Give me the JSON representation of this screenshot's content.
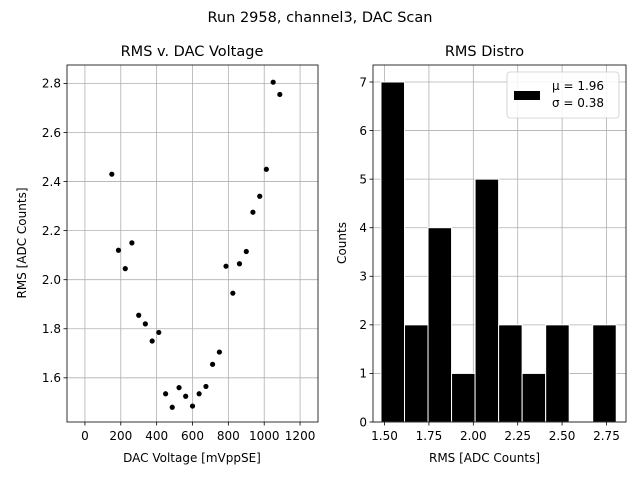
{
  "suptitle": "Run 2958, channel3, DAC Scan",
  "chart_data": [
    {
      "type": "scatter",
      "title": "RMS v. DAC Voltage",
      "xlabel": "DAC Voltage [mVppSE]",
      "ylabel": "RMS [ADC Counts]",
      "xlim": [
        -100,
        1300
      ],
      "ylim": [
        1.42,
        2.875
      ],
      "xticks": [
        0,
        200,
        400,
        600,
        800,
        1000,
        1200
      ],
      "yticks": [
        1.6,
        1.8,
        2.0,
        2.2,
        2.4,
        2.6,
        2.8
      ],
      "ytick_labels": [
        "1.6",
        "1.8",
        "2.0",
        "2.2",
        "2.4",
        "2.6",
        "2.8"
      ],
      "grid": true,
      "marker_color": "#000000",
      "x": [
        150,
        187,
        225,
        262,
        300,
        337,
        375,
        412,
        450,
        487,
        525,
        562,
        600,
        637,
        675,
        712,
        750,
        787,
        825,
        862,
        900,
        937,
        975,
        1012,
        1050,
        1087
      ],
      "y": [
        2.43,
        2.12,
        2.045,
        2.15,
        1.855,
        1.82,
        1.75,
        1.785,
        1.535,
        1.48,
        1.56,
        1.525,
        1.485,
        1.535,
        1.565,
        1.655,
        1.705,
        2.055,
        1.945,
        2.065,
        2.115,
        2.275,
        2.34,
        2.45,
        2.805,
        2.755
      ]
    },
    {
      "type": "bar",
      "subtype": "histogram",
      "title": "RMS Distro",
      "xlabel": "RMS [ADC Counts]",
      "ylabel": "Counts",
      "xlim": [
        1.435,
        2.86
      ],
      "ylim": [
        0,
        7.35
      ],
      "xticks": [
        1.5,
        1.75,
        2.0,
        2.25,
        2.5,
        2.75
      ],
      "xtick_labels": [
        "1.50",
        "1.75",
        "2.00",
        "2.25",
        "2.50",
        "2.75"
      ],
      "yticks": [
        0,
        1,
        2,
        3,
        4,
        5,
        6,
        7
      ],
      "grid": true,
      "bar_color": "#000000",
      "edge_color": "#ffffff",
      "bin_edges": [
        1.48,
        1.6125,
        1.745,
        1.8775,
        2.01,
        2.1425,
        2.275,
        2.4075,
        2.54,
        2.6725,
        2.805
      ],
      "counts": [
        7,
        2,
        4,
        1,
        5,
        2,
        1,
        2,
        0,
        2
      ],
      "legend": {
        "position": "top-right",
        "entries": [
          "μ = 1.96",
          "σ = 0.38"
        ]
      }
    }
  ]
}
